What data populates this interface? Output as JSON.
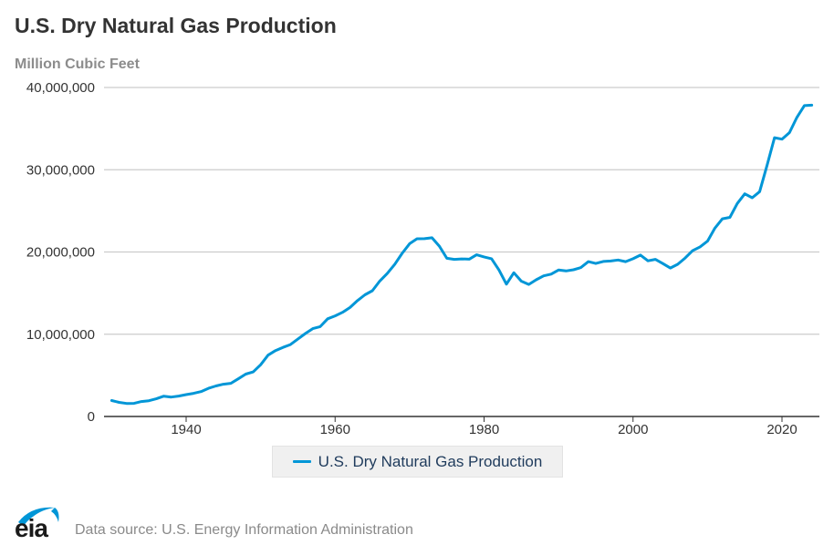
{
  "header": {
    "title": "U.S. Dry Natural Gas Production",
    "subtitle": "Million Cubic Feet"
  },
  "legend": {
    "label": "U.S. Dry Natural Gas Production",
    "color": "#0096d7"
  },
  "footer": {
    "logo_text": "eia",
    "source": "Data source: U.S. Energy Information Administration"
  },
  "chart_data": {
    "type": "line",
    "title": "U.S. Dry Natural Gas Production",
    "ylabel": "Million Cubic Feet",
    "xlabel": "",
    "ylim": [
      0,
      40000000
    ],
    "xlim": [
      1930,
      2024
    ],
    "yticks": [
      0,
      10000000,
      20000000,
      30000000,
      40000000
    ],
    "ytick_labels": [
      "0",
      "10,000,000",
      "20,000,000",
      "30,000,000",
      "40,000,000"
    ],
    "xticks": [
      1940,
      1960,
      1980,
      2000,
      2020
    ],
    "xtick_labels": [
      "1940",
      "1960",
      "1980",
      "2000",
      "2020"
    ],
    "grid": true,
    "legend_position": "bottom-center",
    "series": [
      {
        "name": "U.S. Dry Natural Gas Production",
        "color": "#0096d7",
        "x": [
          1930,
          1931,
          1932,
          1933,
          1934,
          1935,
          1936,
          1937,
          1938,
          1939,
          1940,
          1941,
          1942,
          1943,
          1944,
          1945,
          1946,
          1947,
          1948,
          1949,
          1950,
          1951,
          1952,
          1953,
          1954,
          1955,
          1956,
          1957,
          1958,
          1959,
          1960,
          1961,
          1962,
          1963,
          1964,
          1965,
          1966,
          1967,
          1968,
          1969,
          1970,
          1971,
          1972,
          1973,
          1974,
          1975,
          1976,
          1977,
          1978,
          1979,
          1980,
          1981,
          1982,
          1983,
          1984,
          1985,
          1986,
          1987,
          1988,
          1989,
          1990,
          1991,
          1992,
          1993,
          1994,
          1995,
          1996,
          1997,
          1998,
          1999,
          2000,
          2001,
          2002,
          2003,
          2004,
          2005,
          2006,
          2007,
          2008,
          2009,
          2010,
          2011,
          2012,
          2013,
          2014,
          2015,
          2016,
          2017,
          2018,
          2019,
          2020,
          2021,
          2022,
          2023,
          2024
        ],
        "values": [
          1940000,
          1720000,
          1590000,
          1600000,
          1820000,
          1920000,
          2150000,
          2470000,
          2360000,
          2480000,
          2660000,
          2810000,
          3030000,
          3420000,
          3710000,
          3920000,
          4030000,
          4580000,
          5150000,
          5420000,
          6280000,
          7460000,
          8010000,
          8400000,
          8740000,
          9410000,
          10080000,
          10680000,
          10920000,
          11880000,
          12230000,
          12660000,
          13250000,
          14080000,
          14790000,
          15290000,
          16470000,
          17390000,
          18490000,
          19830000,
          21010000,
          21610000,
          21620000,
          21730000,
          20710000,
          19240000,
          19100000,
          19160000,
          19120000,
          19660000,
          19400000,
          19180000,
          17820000,
          16090000,
          17470000,
          16450000,
          16060000,
          16620000,
          17100000,
          17310000,
          17810000,
          17700000,
          17840000,
          18100000,
          18820000,
          18600000,
          18850000,
          18900000,
          19020000,
          18830000,
          19180000,
          19620000,
          18930000,
          19100000,
          18590000,
          18050000,
          18500000,
          19270000,
          20160000,
          20620000,
          21320000,
          22900000,
          24030000,
          24210000,
          25890000,
          27070000,
          26590000,
          27340000,
          30560000,
          33900000,
          33720000,
          34510000,
          36350000,
          37800000,
          37850000
        ]
      }
    ]
  }
}
